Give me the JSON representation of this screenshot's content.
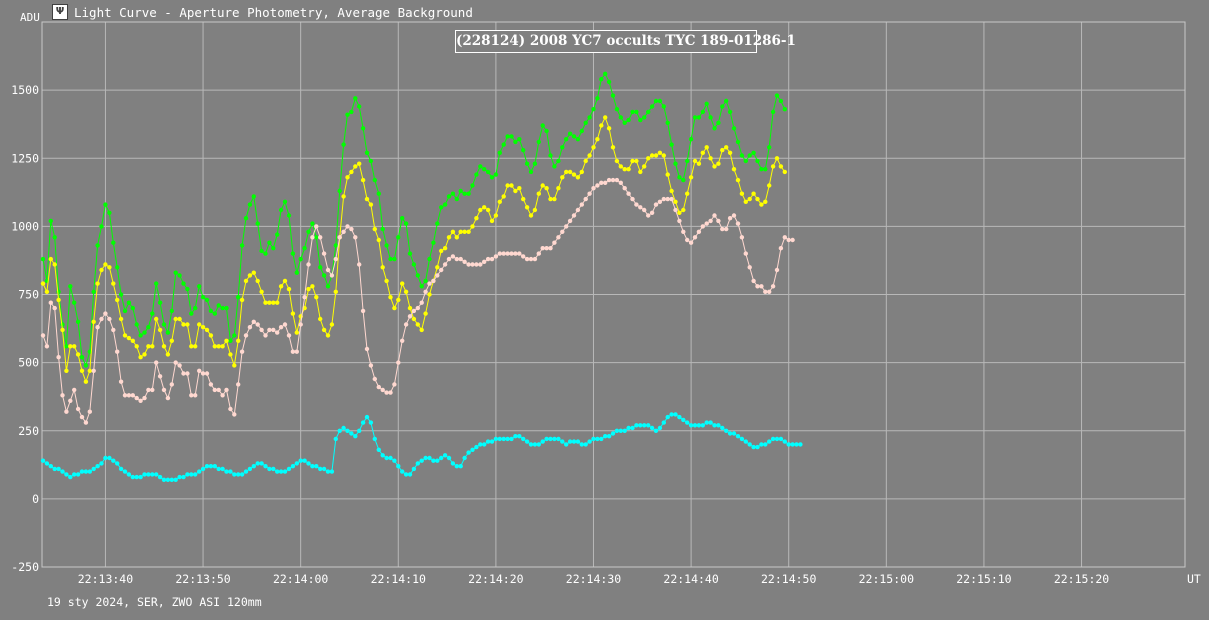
{
  "window": {
    "title": "Light Curve - Aperture Photometry, Average Background",
    "icon": "chart-app-icon"
  },
  "footer": {
    "caption": "19 sty 2024, SER, ZWO ASI 120mm"
  },
  "chart_data": {
    "type": "line",
    "title": "(228124) 2008 YC7 occults TYC 189-01286-1",
    "ylabel": "ADU",
    "xlabel": "UT",
    "grid": true,
    "legend": "none",
    "x_unit": "time (UT, hh:mm:ss)",
    "xlim": [
      "22:13:33.5",
      "22:15:30.6"
    ],
    "ylim": [
      -250,
      1750
    ],
    "x_ticks": [
      "22:13:40",
      "22:13:50",
      "22:14:00",
      "22:14:10",
      "22:14:20",
      "22:14:30",
      "22:14:40",
      "22:14:50",
      "22:15:00",
      "22:15:10",
      "22:15:20"
    ],
    "y_ticks": [
      -250,
      0,
      250,
      500,
      750,
      1000,
      1250,
      1500
    ],
    "sample_interval_s": 0.4,
    "x_start": "22:13:33.6",
    "series": [
      {
        "color": "#00ff00",
        "values": [
          880,
          800,
          1020,
          960,
          760,
          640,
          560,
          780,
          720,
          650,
          520,
          490,
          540,
          760,
          930,
          1000,
          1080,
          1050,
          940,
          850,
          750,
          690,
          720,
          700,
          640,
          600,
          610,
          630,
          680,
          790,
          720,
          640,
          610,
          690,
          830,
          820,
          790,
          770,
          680,
          700,
          780,
          740,
          730,
          690,
          680,
          710,
          700,
          700,
          580,
          600,
          740,
          930,
          1030,
          1080,
          1110,
          1010,
          910,
          900,
          940,
          920,
          970,
          1060,
          1090,
          1040,
          900,
          830,
          880,
          920,
          980,
          1010,
          960,
          850,
          820,
          780,
          820,
          930,
          1130,
          1300,
          1410,
          1420,
          1470,
          1440,
          1360,
          1270,
          1240,
          1170,
          1120,
          990,
          930,
          880,
          880,
          960,
          1030,
          1010,
          900,
          860,
          820,
          780,
          800,
          880,
          940,
          1010,
          1070,
          1080,
          1110,
          1120,
          1100,
          1130,
          1120,
          1120,
          1150,
          1190,
          1220,
          1210,
          1200,
          1180,
          1190,
          1270,
          1300,
          1330,
          1330,
          1310,
          1320,
          1280,
          1230,
          1200,
          1230,
          1310,
          1370,
          1350,
          1260,
          1220,
          1240,
          1290,
          1320,
          1340,
          1330,
          1320,
          1350,
          1380,
          1400,
          1430,
          1470,
          1540,
          1560,
          1530,
          1480,
          1430,
          1400,
          1380,
          1390,
          1420,
          1420,
          1390,
          1400,
          1420,
          1440,
          1460,
          1460,
          1440,
          1380,
          1300,
          1230,
          1180,
          1170,
          1240,
          1320,
          1400,
          1400,
          1420,
          1450,
          1400,
          1360,
          1380,
          1440,
          1460,
          1420,
          1360,
          1310,
          1260,
          1240,
          1260,
          1270,
          1240,
          1210,
          1210,
          1290,
          1420,
          1480,
          1460,
          1430
        ]
      },
      {
        "color": "#ffff00",
        "values": [
          790,
          760,
          880,
          860,
          730,
          620,
          470,
          560,
          560,
          530,
          470,
          430,
          470,
          650,
          790,
          840,
          860,
          850,
          790,
          730,
          660,
          600,
          590,
          580,
          560,
          520,
          530,
          560,
          560,
          660,
          620,
          560,
          530,
          580,
          660,
          660,
          640,
          640,
          560,
          560,
          640,
          630,
          620,
          600,
          560,
          560,
          560,
          580,
          530,
          490,
          580,
          730,
          800,
          820,
          830,
          800,
          760,
          720,
          720,
          720,
          720,
          780,
          800,
          770,
          680,
          610,
          670,
          700,
          770,
          780,
          740,
          660,
          620,
          600,
          640,
          760,
          960,
          1110,
          1180,
          1200,
          1220,
          1230,
          1170,
          1100,
          1080,
          990,
          950,
          850,
          800,
          740,
          700,
          730,
          790,
          760,
          700,
          660,
          640,
          620,
          680,
          750,
          800,
          850,
          910,
          920,
          960,
          980,
          960,
          980,
          980,
          980,
          1000,
          1030,
          1060,
          1070,
          1060,
          1020,
          1040,
          1090,
          1110,
          1150,
          1150,
          1130,
          1140,
          1100,
          1070,
          1040,
          1060,
          1120,
          1150,
          1140,
          1100,
          1100,
          1140,
          1180,
          1200,
          1200,
          1190,
          1180,
          1200,
          1240,
          1260,
          1290,
          1320,
          1370,
          1400,
          1360,
          1290,
          1240,
          1220,
          1210,
          1210,
          1240,
          1240,
          1200,
          1220,
          1250,
          1260,
          1260,
          1270,
          1260,
          1190,
          1130,
          1090,
          1050,
          1060,
          1120,
          1180,
          1240,
          1230,
          1270,
          1290,
          1250,
          1220,
          1230,
          1280,
          1290,
          1270,
          1210,
          1170,
          1120,
          1090,
          1100,
          1120,
          1100,
          1080,
          1090,
          1150,
          1220,
          1250,
          1220,
          1200
        ]
      },
      {
        "color": "#ffd8d0",
        "values": [
          600,
          560,
          720,
          700,
          520,
          380,
          320,
          360,
          400,
          330,
          300,
          280,
          320,
          470,
          630,
          660,
          680,
          660,
          620,
          540,
          430,
          380,
          380,
          380,
          370,
          360,
          370,
          400,
          400,
          500,
          450,
          400,
          370,
          420,
          500,
          490,
          460,
          460,
          380,
          380,
          470,
          460,
          460,
          420,
          400,
          400,
          380,
          400,
          330,
          310,
          420,
          540,
          600,
          630,
          650,
          640,
          620,
          600,
          620,
          620,
          610,
          630,
          640,
          600,
          540,
          540,
          640,
          740,
          860,
          960,
          1000,
          960,
          900,
          840,
          820,
          880,
          960,
          980,
          1000,
          990,
          960,
          860,
          690,
          550,
          490,
          440,
          410,
          400,
          390,
          390,
          420,
          500,
          580,
          640,
          670,
          690,
          700,
          720,
          760,
          790,
          800,
          820,
          840,
          860,
          880,
          890,
          880,
          880,
          870,
          860,
          860,
          860,
          860,
          870,
          880,
          880,
          890,
          900,
          900,
          900,
          900,
          900,
          900,
          890,
          880,
          880,
          880,
          900,
          920,
          920,
          920,
          940,
          960,
          980,
          1000,
          1020,
          1040,
          1060,
          1080,
          1100,
          1120,
          1140,
          1150,
          1160,
          1160,
          1170,
          1170,
          1170,
          1160,
          1140,
          1120,
          1100,
          1080,
          1070,
          1060,
          1040,
          1050,
          1080,
          1090,
          1100,
          1100,
          1100,
          1060,
          1020,
          980,
          950,
          940,
          960,
          980,
          1000,
          1010,
          1020,
          1040,
          1020,
          990,
          990,
          1030,
          1040,
          1010,
          960,
          900,
          850,
          800,
          780,
          780,
          760,
          760,
          780,
          840,
          920,
          960,
          950,
          950
        ]
      },
      {
        "color": "#00ffff",
        "values": [
          140,
          130,
          120,
          110,
          110,
          100,
          90,
          80,
          90,
          90,
          100,
          100,
          100,
          110,
          120,
          130,
          150,
          150,
          140,
          130,
          110,
          100,
          90,
          80,
          80,
          80,
          90,
          90,
          90,
          90,
          80,
          70,
          70,
          70,
          70,
          80,
          80,
          90,
          90,
          90,
          100,
          110,
          120,
          120,
          120,
          110,
          110,
          100,
          100,
          90,
          90,
          90,
          100,
          110,
          120,
          130,
          130,
          120,
          110,
          110,
          100,
          100,
          100,
          110,
          120,
          130,
          140,
          140,
          130,
          120,
          120,
          110,
          110,
          100,
          100,
          220,
          250,
          260,
          250,
          240,
          230,
          250,
          280,
          300,
          280,
          220,
          180,
          160,
          150,
          150,
          140,
          120,
          100,
          90,
          90,
          110,
          130,
          140,
          150,
          150,
          140,
          140,
          150,
          160,
          150,
          130,
          120,
          120,
          150,
          170,
          180,
          190,
          200,
          200,
          210,
          210,
          220,
          220,
          220,
          220,
          220,
          230,
          230,
          220,
          210,
          200,
          200,
          200,
          210,
          220,
          220,
          220,
          220,
          210,
          200,
          210,
          210,
          210,
          200,
          200,
          210,
          220,
          220,
          220,
          230,
          230,
          240,
          250,
          250,
          250,
          260,
          260,
          270,
          270,
          270,
          270,
          260,
          250,
          260,
          280,
          300,
          310,
          310,
          300,
          290,
          280,
          270,
          270,
          270,
          270,
          280,
          280,
          270,
          270,
          260,
          250,
          240,
          240,
          230,
          220,
          210,
          200,
          190,
          190,
          200,
          200,
          210,
          220,
          220,
          220,
          210,
          200,
          200,
          200,
          200
        ]
      }
    ]
  }
}
